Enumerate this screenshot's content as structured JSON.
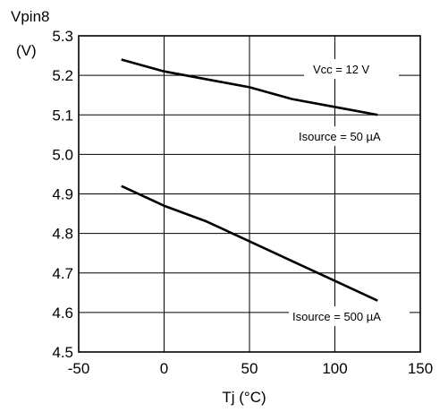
{
  "chart_data": {
    "type": "line",
    "ylabel_top": "Vpin8",
    "ylabel_unit": "(V)",
    "xlabel": "Tj (°C)",
    "xlim": [
      -50,
      150
    ],
    "ylim": [
      4.5,
      5.3
    ],
    "x_ticks": [
      -50,
      0,
      50,
      100,
      150
    ],
    "y_ticks": [
      4.5,
      4.6,
      4.7,
      4.8,
      4.9,
      5.0,
      5.1,
      5.2,
      5.3
    ],
    "x_tick_labels": [
      "-50",
      "0",
      "50",
      "100",
      "150"
    ],
    "y_tick_labels": [
      "4.5",
      "4.6",
      "4.7",
      "4.8",
      "4.9",
      "5.0",
      "5.1",
      "5.2",
      "5.3"
    ],
    "grid": true,
    "condition_label": "Vcc = 12 V",
    "series": [
      {
        "name": "Isource = 50 µA",
        "x": [
          -25,
          0,
          25,
          50,
          75,
          100,
          125
        ],
        "y": [
          5.24,
          5.21,
          5.19,
          5.17,
          5.14,
          5.12,
          5.1
        ]
      },
      {
        "name": "Isource = 500 µA",
        "x": [
          -25,
          0,
          25,
          50,
          75,
          100,
          125
        ],
        "y": [
          4.92,
          4.87,
          4.83,
          4.78,
          4.73,
          4.68,
          4.63
        ]
      }
    ]
  }
}
